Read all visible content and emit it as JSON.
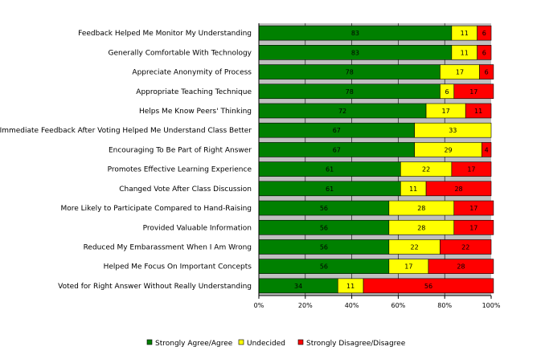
{
  "chart_data": {
    "type": "bar",
    "orientation": "horizontal",
    "stacked": "percent",
    "categories": [
      "Feedback Helped Me Monitor My Understanding",
      "Generally Comfortable With Technology",
      "Appreciate Anonymity of Process",
      "Appropriate Teaching Technique",
      "Helps Me Know Peers' Thinking",
      "Immediate Feedback After Voting Helped Me Understand Class Better",
      "Encouraging To Be Part of Right Answer",
      "Promotes Effective Learning Experience",
      "Changed Vote After Class Discussion",
      "More Likely to Participate Compared to Hand-Raising",
      "Provided Valuable Information",
      "Reduced My Embarassment When I Am Wrong",
      "Helped Me Focus On Important Concepts",
      "Voted for Right Answer Without Really Understanding"
    ],
    "series": [
      {
        "name": "Strongly Agree/Agree",
        "color": "#008000",
        "values": [
          83,
          83,
          78,
          78,
          72,
          67,
          67,
          61,
          61,
          56,
          56,
          56,
          56,
          34
        ]
      },
      {
        "name": "Undecided",
        "color": "#ffff00",
        "values": [
          11,
          11,
          17,
          6,
          17,
          33,
          29,
          22,
          11,
          28,
          28,
          22,
          17,
          11
        ]
      },
      {
        "name": "Strongly Disagree/Disagree",
        "color": "#ff0000",
        "values": [
          6,
          6,
          6,
          17,
          11,
          0,
          4,
          17,
          28,
          17,
          17,
          22,
          28,
          56
        ]
      }
    ],
    "xlim": [
      0,
      100
    ],
    "xticks": [
      "0%",
      "20%",
      "40%",
      "60%",
      "80%",
      "100%"
    ],
    "plot_background": "#c0c0c0",
    "grid": true,
    "legend_position": "bottom"
  }
}
